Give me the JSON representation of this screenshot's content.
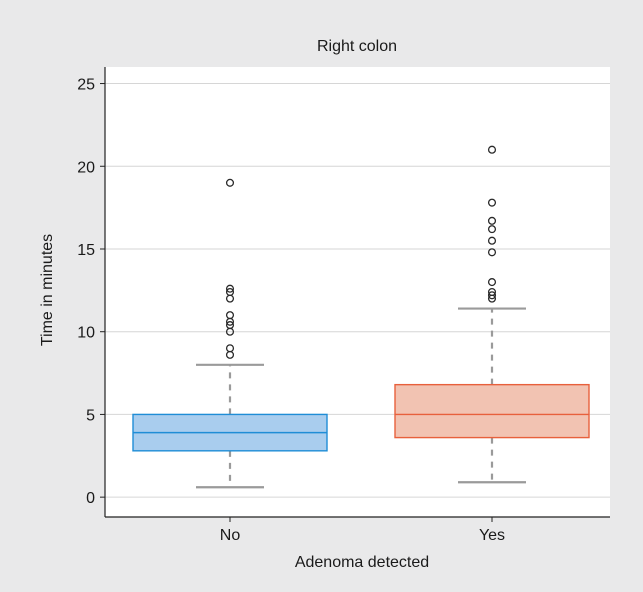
{
  "chart_data": {
    "type": "boxplot",
    "title": "Right colon",
    "xlabel": "Adenoma detected",
    "ylabel": "Time in minutes",
    "ylim": [
      -1.2,
      26
    ],
    "yticks": [
      0,
      5,
      10,
      15,
      20,
      25
    ],
    "grid": true,
    "categories": [
      "No",
      "Yes"
    ],
    "series": [
      {
        "category": "No",
        "color": "#1f8dd6",
        "fill": "#a9cdee",
        "whisker_low": 0.6,
        "q1": 2.8,
        "median": 3.9,
        "q3": 5.0,
        "whisker_high": 8.0,
        "outliers": [
          8.6,
          9.0,
          10.0,
          10.4,
          10.6,
          11.0,
          12.0,
          12.4,
          12.6,
          19.0
        ]
      },
      {
        "category": "Yes",
        "color": "#e8603c",
        "fill": "#f2c3b2",
        "whisker_low": 0.9,
        "q1": 3.6,
        "median": 5.0,
        "q3": 6.8,
        "whisker_high": 11.4,
        "outliers": [
          12.0,
          12.2,
          12.4,
          13.0,
          14.8,
          15.5,
          16.2,
          16.7,
          17.8,
          21.0
        ]
      }
    ]
  }
}
